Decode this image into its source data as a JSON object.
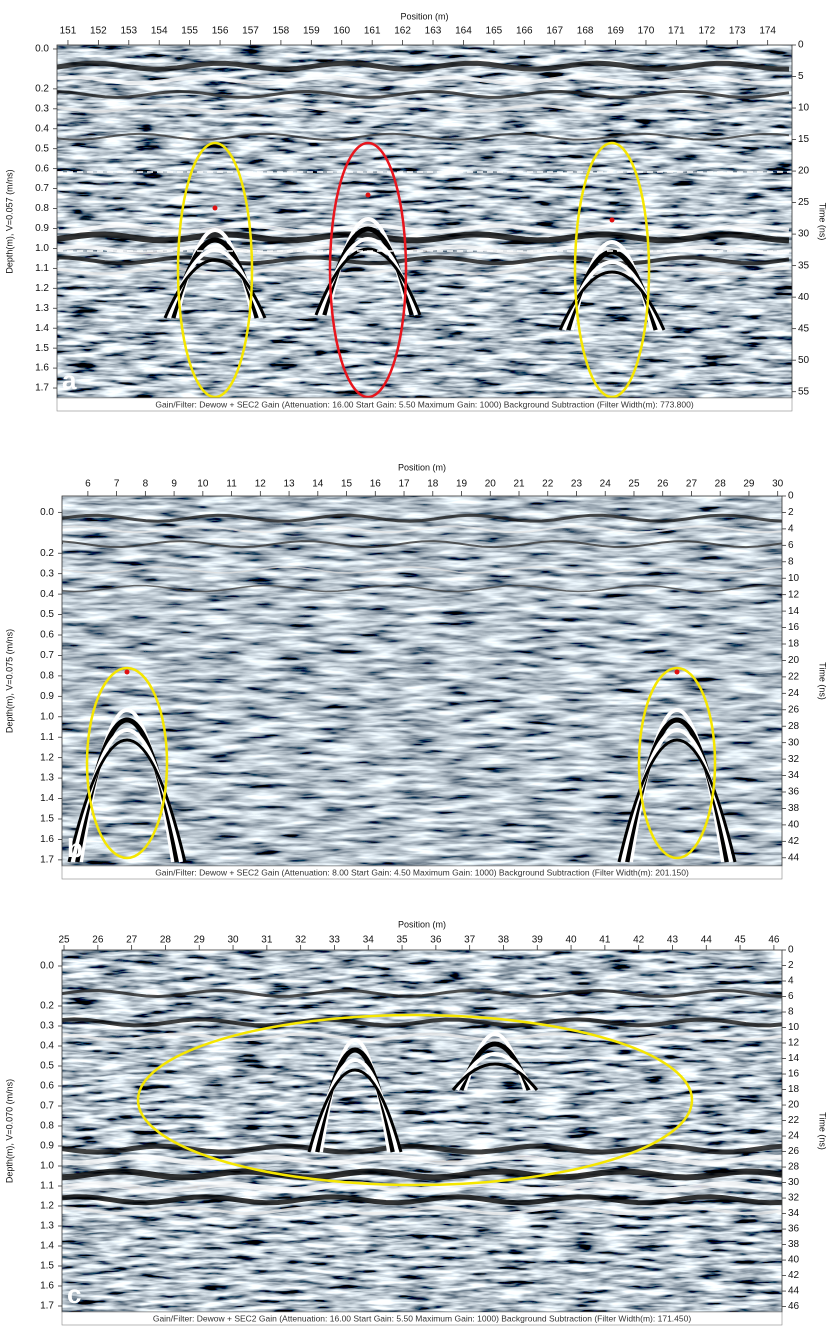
{
  "panels": [
    {
      "label": "a",
      "x_title": "Position (m)",
      "xlim": [
        150.64,
        174.8
      ],
      "xticks": [
        151,
        152,
        153,
        154,
        155,
        156,
        157,
        158,
        159,
        160,
        161,
        162,
        163,
        164,
        165,
        166,
        167,
        168,
        169,
        170,
        171,
        172,
        173,
        174
      ],
      "y_title": "Depth(m), V=0.057 (m/ns)",
      "ylim": [
        -0.02,
        1.75
      ],
      "yticks": [
        {
          "value": 0,
          "label": "0.0"
        },
        0.2,
        0.3,
        0.4,
        0.5,
        0.6,
        0.7,
        0.8,
        0.9,
        {
          "value": 1,
          "label": "1.0"
        },
        1.1,
        1.2,
        1.3,
        1.4,
        1.5,
        1.6,
        1.7
      ],
      "y2_title": "Time (ns)",
      "y2lim": [
        0,
        56
      ],
      "y2ticks": [
        0,
        5,
        10,
        15,
        20,
        25,
        30,
        35,
        40,
        45,
        50,
        55
      ],
      "footer": "Gain/Filter: Dewow + SEC2 Gain (Attenuation: 16.00 Start Gain: 5.50 Maximum Gain: 1000) Background Subtraction (Filter Width(m): 773.800)"
    },
    {
      "label": "b",
      "x_title": "Position (m)",
      "xlim": [
        5.1,
        30.15
      ],
      "xticks": [
        6,
        7,
        8,
        9,
        10,
        11,
        12,
        13,
        14,
        15,
        16,
        17,
        18,
        19,
        20,
        21,
        22,
        23,
        24,
        25,
        26,
        27,
        28,
        29,
        30
      ],
      "y_title": "Depth(m), V=0.075 (m/ns)",
      "ylim": [
        -0.08,
        1.73
      ],
      "yticks": [
        {
          "value": 0,
          "label": "0.0"
        },
        0.2,
        0.3,
        0.4,
        0.5,
        0.6,
        0.7,
        0.8,
        0.9,
        {
          "value": 1,
          "label": "1.0"
        },
        1.1,
        1.2,
        1.3,
        1.4,
        1.5,
        1.6,
        1.7
      ],
      "y2_title": "Time (ns)",
      "y2lim": [
        0,
        45
      ],
      "y2ticks": [
        0,
        2,
        4,
        6,
        8,
        10,
        12,
        14,
        16,
        18,
        20,
        22,
        24,
        26,
        28,
        30,
        32,
        34,
        36,
        38,
        40,
        42,
        44
      ],
      "footer": "Gain/Filter: Dewow + SEC2 Gain (Attenuation: 8.00 Start Gain: 4.50 Maximum Gain: 1000) Background Subtraction (Filter Width(m): 201.150)"
    },
    {
      "label": "c",
      "x_title": "Position (m)",
      "xlim": [
        24.94,
        46.24
      ],
      "xticks": [
        25,
        26,
        27,
        28,
        29,
        30,
        31,
        32,
        33,
        34,
        35,
        36,
        37,
        38,
        39,
        40,
        41,
        42,
        43,
        44,
        45,
        46
      ],
      "y_title": "Depth(m), V=0.070 (m/ns)",
      "ylim": [
        -0.08,
        1.73
      ],
      "yticks": [
        {
          "value": 0,
          "label": "0.0"
        },
        0.2,
        0.3,
        0.4,
        0.5,
        0.6,
        0.7,
        0.8,
        0.9,
        {
          "value": 1,
          "label": "1.0"
        },
        1.1,
        1.2,
        1.3,
        1.4,
        1.5,
        1.6,
        1.7
      ],
      "y2_title": "Time (ns)",
      "y2lim": [
        0,
        46.7
      ],
      "y2ticks": [
        0,
        2,
        4,
        6,
        8,
        10,
        12,
        14,
        16,
        18,
        20,
        22,
        24,
        26,
        28,
        30,
        32,
        34,
        36,
        38,
        40,
        42,
        44,
        46
      ],
      "footer": "Gain/Filter: Dewow + SEC2 Gain (Attenuation: 16.00 Start Gain: 5.50 Maximum Gain: 1000) Background Subtraction (Filter Width(m): 171.450)"
    }
  ]
}
